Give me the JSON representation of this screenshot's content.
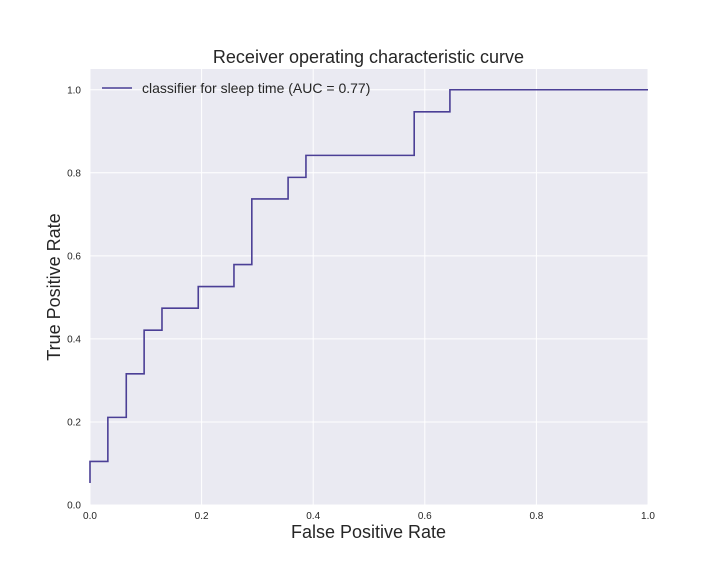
{
  "chart_data": {
    "type": "line",
    "title": "Receiver operating characteristic curve",
    "xlabel": "False Positive Rate",
    "ylabel": "True Positive Rate",
    "xlim": [
      0.0,
      1.0
    ],
    "ylim": [
      0.0,
      1.05
    ],
    "x_ticks": [
      "0.0",
      "0.2",
      "0.4",
      "0.6",
      "0.8",
      "1.0"
    ],
    "y_ticks": [
      "0.0",
      "0.2",
      "0.4",
      "0.6",
      "0.8",
      "1.0"
    ],
    "x_tick_values": [
      0.0,
      0.2,
      0.4,
      0.6,
      0.8,
      1.0
    ],
    "y_tick_values": [
      0.0,
      0.2,
      0.4,
      0.6,
      0.8,
      1.0
    ],
    "grid": true,
    "legend_position": "top-left",
    "colors": {
      "background": "#eaeaf2",
      "grid": "#ffffff",
      "line": "#4b3f96"
    },
    "series": [
      {
        "name": "classifier for sleep time (AUC = 0.77)",
        "x": [
          0.0,
          0.0,
          0.032,
          0.032,
          0.065,
          0.065,
          0.097,
          0.097,
          0.129,
          0.129,
          0.194,
          0.194,
          0.258,
          0.258,
          0.29,
          0.29,
          0.355,
          0.355,
          0.387,
          0.387,
          0.581,
          0.581,
          0.645,
          0.645,
          1.0
        ],
        "y": [
          0.053,
          0.105,
          0.105,
          0.211,
          0.211,
          0.316,
          0.316,
          0.421,
          0.421,
          0.474,
          0.474,
          0.526,
          0.526,
          0.579,
          0.579,
          0.737,
          0.737,
          0.789,
          0.789,
          0.842,
          0.842,
          0.947,
          0.947,
          1.0,
          1.0
        ]
      }
    ]
  }
}
